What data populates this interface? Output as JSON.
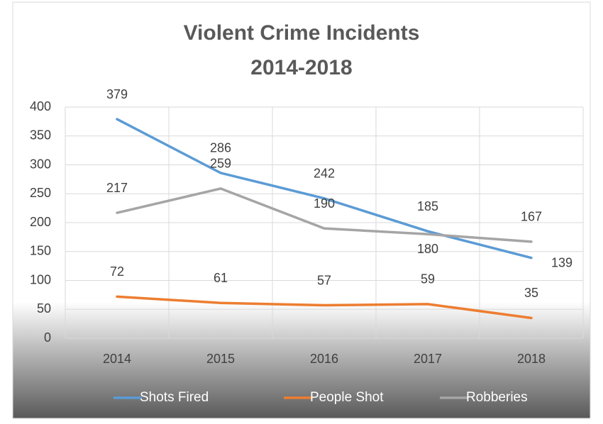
{
  "chart_data": {
    "type": "line",
    "title": "Violent Crime Incidents",
    "subtitle": "2014-2018",
    "categories": [
      "2014",
      "2015",
      "2016",
      "2017",
      "2018"
    ],
    "series": [
      {
        "name": "Shots Fired",
        "color": "#5b9bd5",
        "values": [
          379,
          286,
          242,
          185,
          139
        ]
      },
      {
        "name": "People Shot",
        "color": "#ed7d31",
        "values": [
          72,
          61,
          57,
          59,
          35
        ]
      },
      {
        "name": "Robberies",
        "color": "#a5a5a5",
        "values": [
          217,
          259,
          190,
          180,
          167
        ]
      }
    ],
    "ylim": [
      0,
      400
    ],
    "yticks": [
      0,
      50,
      100,
      150,
      200,
      250,
      300,
      350,
      400
    ],
    "grid": true,
    "legend": "bottom"
  }
}
